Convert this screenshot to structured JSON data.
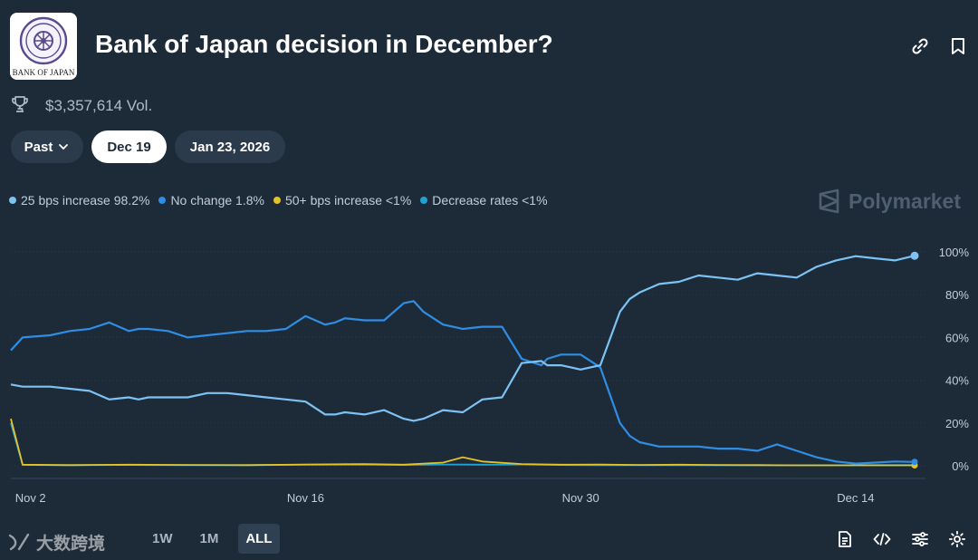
{
  "header": {
    "title": "Bank of Japan decision in December?",
    "logo_text": "BANK OF JAPAN"
  },
  "volume": {
    "text": "$3,357,614 Vol."
  },
  "date_chips": [
    {
      "label": "Past",
      "active": false,
      "has_dropdown": true
    },
    {
      "label": "Dec 19",
      "active": true
    },
    {
      "label": "Jan 23, 2026",
      "active": false
    }
  ],
  "legend": [
    {
      "label": "25 bps increase 98.2%",
      "color": "#7cc3f4"
    },
    {
      "label": "No change 1.8%",
      "color": "#2f8de4"
    },
    {
      "label": "50+ bps increase <1%",
      "color": "#e6c229"
    },
    {
      "label": "Decrease rates <1%",
      "color": "#1fa3d6"
    }
  ],
  "brand": {
    "name": "Polymarket"
  },
  "range_buttons": [
    {
      "label": "1W",
      "active": false
    },
    {
      "label": "1M",
      "active": false
    },
    {
      "label": "ALL",
      "active": true
    }
  ],
  "watermark": {
    "text": "大数跨境"
  },
  "icons": {
    "link": "link-icon",
    "bookmark": "bookmark-icon",
    "trophy": "trophy-icon",
    "document": "document-icon",
    "embed": "code-icon",
    "filters": "sliders-icon",
    "settings": "gear-icon"
  },
  "chart_data": {
    "type": "line",
    "x_start": "Nov 1",
    "x_end": "Dec 17",
    "x_tick_labels": [
      "Nov 2",
      "Nov 16",
      "Nov 30",
      "Dec 14"
    ],
    "x_tick_days": [
      1,
      15,
      29,
      43
    ],
    "ylim": [
      0,
      100
    ],
    "y_tick_labels": [
      "100%",
      "80%",
      "60%",
      "40%",
      "20%",
      "0%"
    ],
    "y_ticks": [
      100,
      80,
      60,
      40,
      20,
      0
    ],
    "grid": true,
    "legend_position": "top-left",
    "series": [
      {
        "name": "25 bps increase",
        "color": "#7cc3f4",
        "x": [
          0,
          0.6,
          2,
          3,
          4,
          5,
          6,
          6.5,
          7,
          8,
          9,
          10,
          11,
          12,
          13,
          14,
          15,
          16,
          16.5,
          17,
          18,
          19,
          20,
          20.5,
          21,
          22,
          23,
          24,
          25,
          26,
          27,
          27.3,
          28,
          29,
          30,
          31,
          31.5,
          32,
          33,
          34,
          35,
          36,
          37,
          38,
          39,
          40,
          41,
          42,
          43,
          44,
          45,
          46
        ],
        "values": [
          38,
          37,
          37,
          36,
          35,
          31,
          32,
          31,
          32,
          32,
          32,
          34,
          34,
          33,
          32,
          31,
          30,
          24,
          24,
          25,
          24,
          26,
          22,
          21,
          22,
          26,
          25,
          31,
          32,
          48,
          49,
          47,
          47,
          45,
          47,
          72,
          78,
          81,
          85,
          86,
          89,
          88,
          87,
          90,
          89,
          88,
          93,
          96,
          98,
          97,
          96,
          98.2
        ]
      },
      {
        "name": "No change",
        "color": "#2f8de4",
        "x": [
          0,
          0.6,
          2,
          3,
          4,
          5,
          6,
          6.5,
          7,
          8,
          9,
          10,
          11,
          12,
          13,
          14,
          15,
          16,
          16.5,
          17,
          18,
          19,
          20,
          20.5,
          21,
          22,
          23,
          24,
          25,
          26,
          27,
          27.3,
          28,
          29,
          30,
          31,
          31.5,
          32,
          33,
          34,
          35,
          36,
          37,
          38,
          39,
          40,
          41,
          42,
          43,
          44,
          45,
          46
        ],
        "values": [
          54,
          60,
          61,
          63,
          64,
          67,
          63,
          64,
          64,
          63,
          60,
          61,
          62,
          63,
          63,
          64,
          70,
          66,
          67,
          69,
          68,
          68,
          76,
          77,
          72,
          66,
          64,
          65,
          65,
          50,
          47,
          50,
          52,
          52,
          46,
          20,
          14,
          11,
          9,
          9,
          9,
          8,
          8,
          7,
          10,
          7,
          4,
          2,
          1,
          1.5,
          2,
          1.8
        ]
      },
      {
        "name": "50+ bps increase",
        "color": "#e6c229",
        "x": [
          0,
          0.6,
          3,
          6,
          9,
          12,
          15,
          18,
          20,
          22,
          23,
          24,
          26,
          28,
          30,
          32,
          34,
          36,
          38,
          40,
          42,
          44,
          46
        ],
        "values": [
          22,
          0.5,
          0.3,
          0.5,
          0.4,
          0.3,
          0.6,
          0.8,
          0.5,
          1.5,
          4,
          2,
          0.8,
          0.5,
          0.6,
          0.4,
          0.5,
          0.4,
          0.3,
          0.2,
          0.2,
          0.2,
          0.2
        ]
      },
      {
        "name": "Decrease rates",
        "color": "#1fa3d6",
        "x": [
          0,
          0.6,
          3,
          6,
          9,
          12,
          15,
          18,
          20,
          22,
          24,
          26,
          28,
          30,
          32,
          34,
          36,
          38,
          40,
          42,
          44,
          46
        ],
        "values": [
          20,
          0.4,
          0.3,
          0.4,
          0.3,
          0.3,
          0.5,
          0.5,
          0.4,
          0.6,
          0.5,
          0.6,
          0.4,
          0.3,
          0.3,
          0.3,
          0.2,
          0.3,
          0.2,
          0.2,
          0.3,
          0.3
        ]
      }
    ]
  }
}
